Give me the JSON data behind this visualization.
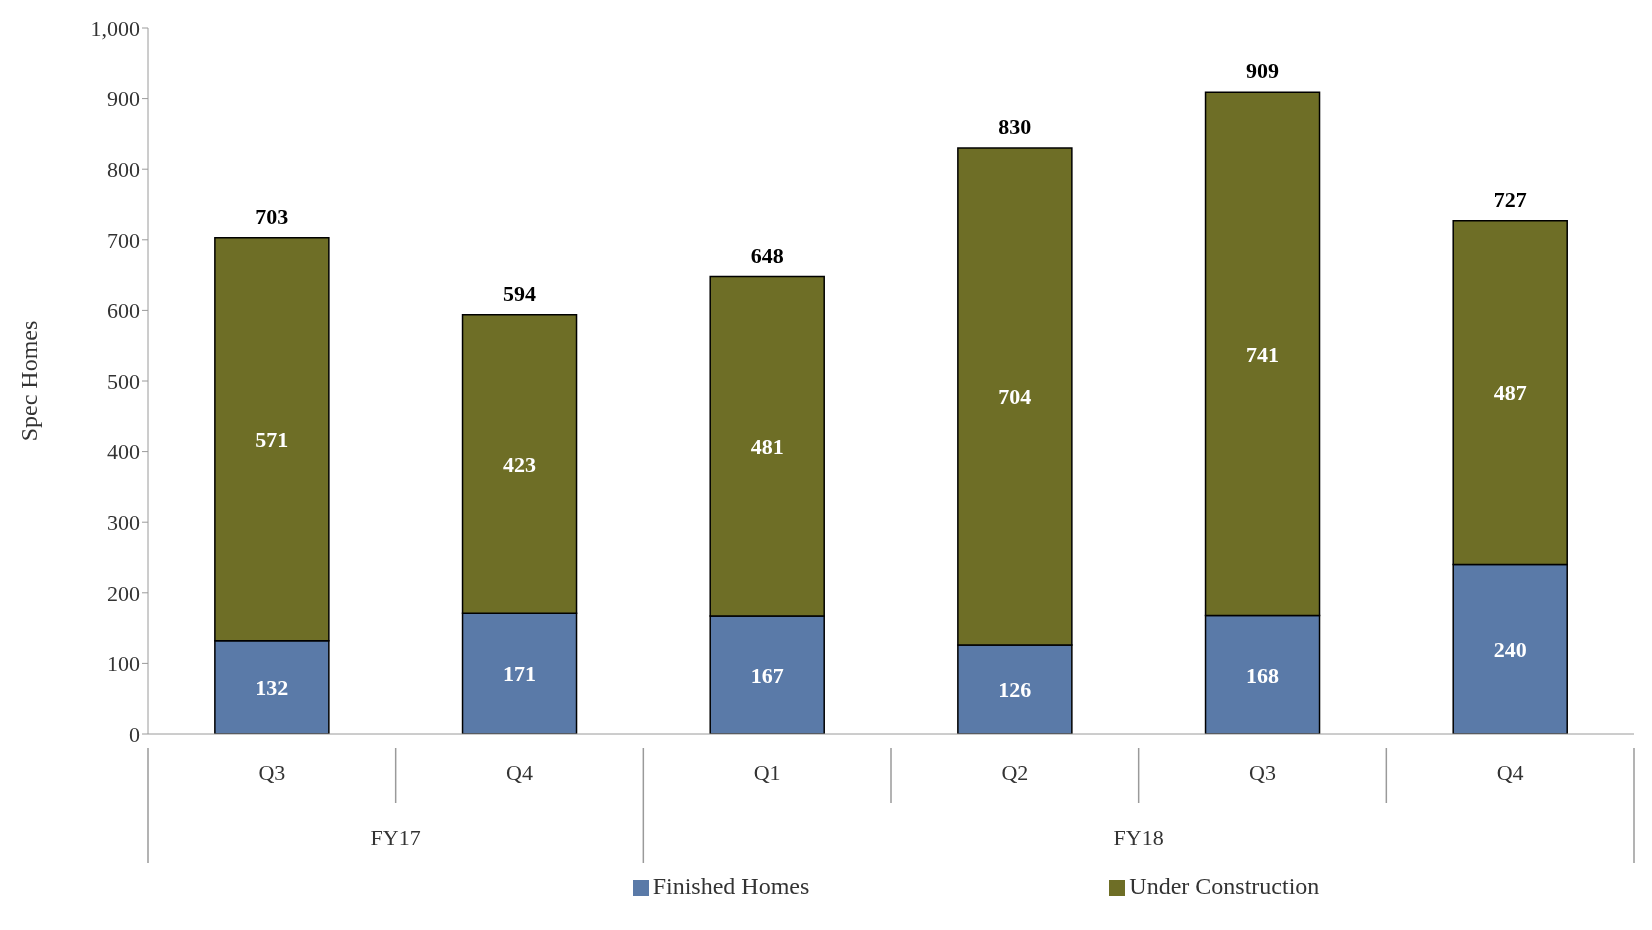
{
  "chart_data": {
    "type": "bar",
    "stacked": true,
    "ylabel": "Spec Homes",
    "categories": [
      "Q3",
      "Q4",
      "Q1",
      "Q2",
      "Q3",
      "Q4"
    ],
    "annotations": [
      "FY17",
      "FY18"
    ],
    "series": [
      {
        "name": "Finished Homes",
        "color": "#5a7aa8",
        "values": [
          132,
          171,
          167,
          126,
          168,
          240
        ]
      },
      {
        "name": "Under Construction",
        "color": "#6e6e26",
        "values": [
          571,
          423,
          481,
          704,
          741,
          487
        ]
      }
    ],
    "totals": [
      "703",
      "594",
      "648",
      "830",
      "909",
      "727"
    ],
    "data_labels": true,
    "ylim": [
      0,
      1000
    ],
    "yticks": [
      0,
      100,
      200,
      300,
      400,
      500,
      600,
      700,
      800,
      900,
      {
        "value": 1000,
        "label": "1,000"
      }
    ],
    "legend": "bottom"
  }
}
